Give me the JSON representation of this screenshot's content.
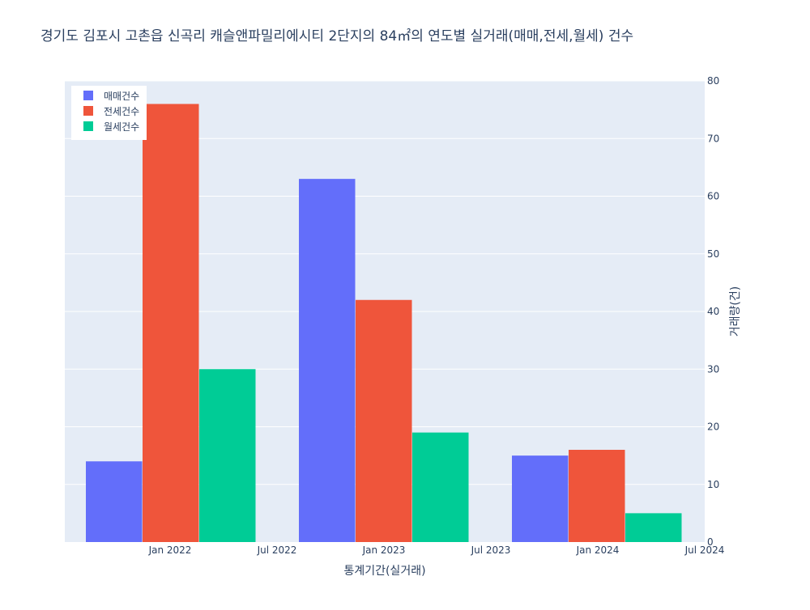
{
  "chart_data": {
    "type": "bar",
    "title": "경기도 김포시 고촌읍 신곡리 캐슬앤파밀리에시티 2단지의 84㎡의 연도별 실거래(매매,전세,월세) 건수",
    "xlabel": "통계기간(실거래)",
    "ylabel": "거래량(건)",
    "x_tick_labels": [
      "Jan 2022",
      "Jul 2022",
      "Jan 2023",
      "Jul 2023",
      "Jan 2024",
      "Jul 2024"
    ],
    "y_tick_labels": [
      "0",
      "10",
      "20",
      "30",
      "40",
      "50",
      "60",
      "70",
      "80"
    ],
    "ylim": [
      0,
      80
    ],
    "y_axis_side": "right",
    "grid": true,
    "legend_position": "top-left",
    "categories": [
      "2022",
      "2023",
      "2024"
    ],
    "series": [
      {
        "name": "매매건수",
        "color": "#636efa",
        "values": [
          14,
          63,
          15
        ]
      },
      {
        "name": "전세건수",
        "color": "#ef553b",
        "values": [
          76,
          42,
          16
        ]
      },
      {
        "name": "월세건수",
        "color": "#00cc96",
        "values": [
          30,
          19,
          5
        ]
      }
    ]
  }
}
